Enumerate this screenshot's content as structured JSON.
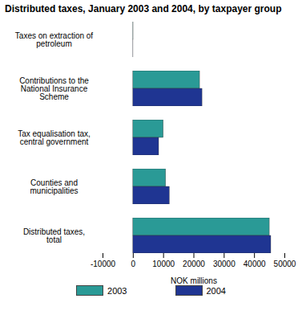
{
  "chart_data": {
    "type": "bar",
    "orientation": "horizontal",
    "title": "Distributed taxes, January 2003 and 2004, by taxpayer group",
    "categories": [
      "Taxes on extraction of petroleum",
      "Contributions to the National Insurance Scheme",
      "Tax equalisation tax, central government",
      "Counties and municipalities",
      "Distributed taxes, total"
    ],
    "series": [
      {
        "name": "2003",
        "color": "#2a9a96",
        "values": [
          50,
          22000,
          10000,
          10800,
          45000
        ]
      },
      {
        "name": "2004",
        "color": "#1f3592",
        "values": [
          20,
          22800,
          8500,
          12000,
          45500
        ]
      }
    ],
    "x_label": "NOK millions",
    "xlim": [
      -10000,
      50000
    ],
    "xticks": [
      -10000,
      0,
      10000,
      20000,
      30000,
      40000,
      50000
    ],
    "grid": false,
    "legend": "bottom"
  }
}
